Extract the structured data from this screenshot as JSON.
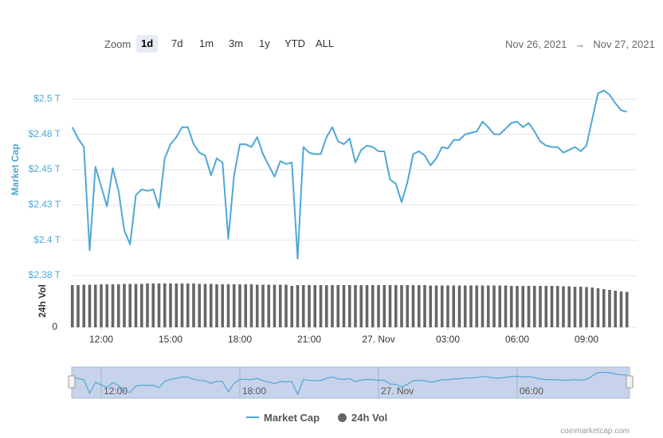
{
  "chart_data": {
    "type": "line",
    "zoom_label": "Zoom",
    "zoom_options": [
      "1d",
      "7d",
      "1m",
      "3m",
      "1y",
      "YTD",
      "ALL"
    ],
    "selected_zoom": "1d",
    "date_from": "Nov 26, 2021",
    "date_separator": "→",
    "date_to": "Nov 27, 2021",
    "y_label": "Market Cap",
    "y2_label": "24h Vol",
    "x": [
      10.75,
      11,
      11.25,
      11.5,
      11.75,
      12,
      12.25,
      12.5,
      12.75,
      13,
      13.25,
      13.5,
      13.75,
      14,
      14.25,
      14.5,
      14.75,
      15,
      15.25,
      15.5,
      15.75,
      16,
      16.25,
      16.5,
      16.75,
      17,
      17.25,
      17.5,
      17.75,
      18,
      18.25,
      18.5,
      18.75,
      19,
      19.25,
      19.5,
      19.75,
      20,
      20.25,
      20.5,
      20.75,
      21,
      21.25,
      21.5,
      21.75,
      22,
      22.25,
      22.5,
      22.75,
      23,
      23.25,
      23.5,
      23.75,
      24,
      24.25,
      24.5,
      24.75,
      25,
      25.25,
      25.5,
      25.75,
      26,
      26.25,
      26.5,
      26.75,
      27,
      27.25,
      27.5,
      27.75,
      28,
      28.25,
      28.5,
      28.75,
      29,
      29.25,
      29.5,
      29.75,
      30,
      30.25,
      30.5,
      30.75,
      31,
      31.25,
      31.5,
      31.75,
      32,
      32.25,
      32.5,
      32.75,
      33,
      33.25,
      33.5,
      33.75,
      34,
      34.25,
      34.5,
      34.75
    ],
    "series": [
      {
        "name": "Market Cap",
        "color": "#4da8d6",
        "values": [
          2.48,
          2.472,
          2.466,
          2.393,
          2.452,
          2.438,
          2.424,
          2.451,
          2.435,
          2.407,
          2.397,
          2.432,
          2.436,
          2.435,
          2.436,
          2.423,
          2.458,
          2.468,
          2.473,
          2.48,
          2.48,
          2.468,
          2.462,
          2.46,
          2.446,
          2.458,
          2.455,
          2.401,
          2.446,
          2.468,
          2.468,
          2.466,
          2.473,
          2.461,
          2.453,
          2.445,
          2.456,
          2.454,
          2.455,
          2.387,
          2.466,
          2.462,
          2.461,
          2.461,
          2.473,
          2.48,
          2.47,
          2.468,
          2.472,
          2.455,
          2.464,
          2.467,
          2.466,
          2.463,
          2.463,
          2.443,
          2.44,
          2.427,
          2.441,
          2.461,
          2.463,
          2.46,
          2.453,
          2.458,
          2.466,
          2.465,
          2.471,
          2.471,
          2.475,
          2.476,
          2.477,
          2.484,
          2.48,
          2.475,
          2.475,
          2.479,
          2.483,
          2.484,
          2.48,
          2.483,
          2.477,
          2.47,
          2.467,
          2.466,
          2.466,
          2.462,
          2.464,
          2.466,
          2.463,
          2.467,
          2.486,
          2.504,
          2.506,
          2.503,
          2.497,
          2.492,
          2.491
        ]
      },
      {
        "name": "24h Vol",
        "color": "#666666",
        "axis": "y2",
        "values": [
          106,
          106,
          107,
          107,
          107,
          108,
          108,
          108,
          108,
          109,
          109,
          109,
          109,
          110,
          110,
          110,
          110,
          110,
          110,
          110,
          110,
          110,
          109,
          109,
          109,
          108,
          108,
          108,
          108,
          108,
          108,
          108,
          107,
          107,
          107,
          107,
          107,
          107,
          104,
          106,
          106,
          106,
          106,
          106,
          106,
          106,
          106,
          106,
          106,
          106,
          106,
          106,
          106,
          106,
          106,
          106,
          106,
          106,
          106,
          106,
          106,
          106,
          105,
          105,
          105,
          105,
          105,
          105,
          105,
          105,
          105,
          105,
          105,
          105,
          105,
          105,
          104,
          104,
          104,
          104,
          104,
          104,
          104,
          104,
          104,
          103,
          103,
          102,
          102,
          101,
          100,
          98,
          96,
          94,
          92,
          90,
          89
        ]
      }
    ],
    "xlim": [
      10.75,
      34.75
    ],
    "xticks": [
      {
        "value": 12,
        "label": "12:00"
      },
      {
        "value": 15,
        "label": "15:00"
      },
      {
        "value": 18,
        "label": "18:00"
      },
      {
        "value": 21,
        "label": "21:00"
      },
      {
        "value": 24,
        "label": "27. Nov"
      },
      {
        "value": 27,
        "label": "03:00"
      },
      {
        "value": 30,
        "label": "06:00"
      },
      {
        "value": 33,
        "label": "09:00"
      }
    ],
    "ylim": [
      2.375,
      2.525
    ],
    "yticks": [
      {
        "value": 2.375,
        "label": "$2.38 T"
      },
      {
        "value": 2.4,
        "label": "$2.4 T"
      },
      {
        "value": 2.425,
        "label": "$2.43 T"
      },
      {
        "value": 2.45,
        "label": "$2.45 T"
      },
      {
        "value": 2.475,
        "label": "$2.48 T"
      },
      {
        "value": 2.5,
        "label": "$2.5 T"
      }
    ],
    "y2lim": [
      0,
      130
    ],
    "y2ticks": [
      0
    ],
    "navigator_xticks": [
      {
        "value": 12,
        "label": "12:00"
      },
      {
        "value": 18,
        "label": "18:00"
      },
      {
        "value": 24,
        "label": "27. Nov"
      },
      {
        "value": 30,
        "label": "06:00"
      }
    ],
    "grid": true,
    "legend": "bottom",
    "credit": "coinmarketcap.com"
  }
}
